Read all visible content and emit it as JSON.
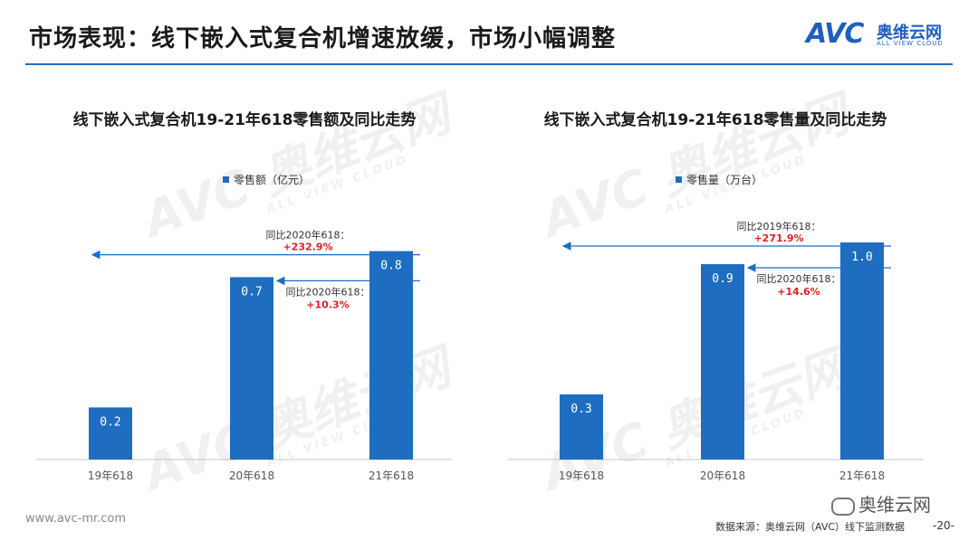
{
  "header": {
    "title": "市场表现：线下嵌入式复合机增速放缓，市场小幅调整",
    "logo_mark": "AVC",
    "logo_cn": "奥维云网",
    "logo_en": "ALL VIEW CLOUD"
  },
  "watermark": {
    "mark": "AVC",
    "cn": "奥维云网",
    "en": "ALL VIEW CLOUD"
  },
  "colors": {
    "bar": "#1f6dc0",
    "accent_rule": "#1f6dc0",
    "growth_text": "#e02020"
  },
  "chart_data": [
    {
      "type": "bar",
      "title": "线下嵌入式复合机19-21年618零售额及同比走势",
      "legend": "零售额（亿元）",
      "categories": [
        "19年618",
        "20年618",
        "21年618"
      ],
      "values": [
        0.2,
        0.7,
        0.8
      ],
      "value_labels": [
        "0.2",
        "0.7",
        "0.8"
      ],
      "ylim": [
        0,
        1.0
      ],
      "annotations": [
        {
          "text": "同比2020年618：",
          "value": "+232.9%"
        },
        {
          "text": "同比2020年618：",
          "value": "+10.3%"
        }
      ]
    },
    {
      "type": "bar",
      "title": "线下嵌入式复合机19-21年618零售量及同比走势",
      "legend": "零售量（万台）",
      "categories": [
        "19年618",
        "20年618",
        "21年618"
      ],
      "values": [
        0.3,
        0.9,
        1.0
      ],
      "value_labels": [
        "0.3",
        "0.9",
        "1.0"
      ],
      "ylim": [
        0,
        1.2
      ],
      "annotations": [
        {
          "text": "同比2019年618：",
          "value": "+271.9%"
        },
        {
          "text": "同比2020年618：",
          "value": "+14.6%"
        }
      ]
    }
  ],
  "footer": {
    "url": "www.avc-mr.com",
    "source": "数据来源：奥维云网（AVC）线下监测数据",
    "page": "-20-",
    "wechat": "奥维云网"
  }
}
